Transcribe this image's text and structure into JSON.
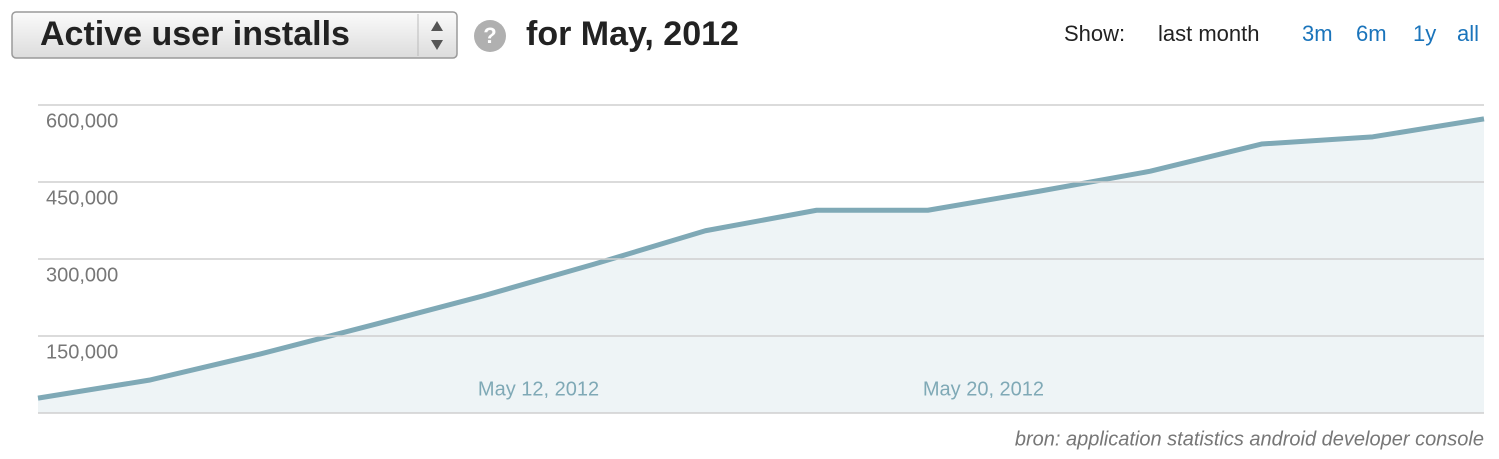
{
  "toolbar": {
    "metric": "Active user installs",
    "help": "?",
    "period": "for May, 2012",
    "show_label": "Show:",
    "ranges": [
      "last month",
      "3m",
      "6m",
      "1y",
      "all"
    ]
  },
  "chart_data": {
    "type": "area",
    "x": [
      3,
      5,
      7,
      9,
      11,
      13,
      15,
      17,
      19,
      21,
      23,
      25,
      27,
      29
    ],
    "series": [
      {
        "color": "#7fa9b6",
        "values": [
          29000,
          64000,
          115000,
          171000,
          228000,
          290000,
          355000,
          395000,
          395000,
          432000,
          471000,
          524000,
          538000,
          573000
        ]
      }
    ],
    "xlim": [
      3,
      29
    ],
    "xticks": [
      {
        "value": 12,
        "label": "May 12, 2012"
      },
      {
        "value": 20,
        "label": "May 20, 2012"
      }
    ],
    "ylim": [
      0,
      600000
    ],
    "yticks": [
      {
        "value": 150000,
        "label": "150,000"
      },
      {
        "value": 300000,
        "label": "300,000"
      },
      {
        "value": 450000,
        "label": "450,000"
      },
      {
        "value": 600000,
        "label": "600,000"
      }
    ],
    "grid": true,
    "source": "bron: application statistics android developer console"
  }
}
